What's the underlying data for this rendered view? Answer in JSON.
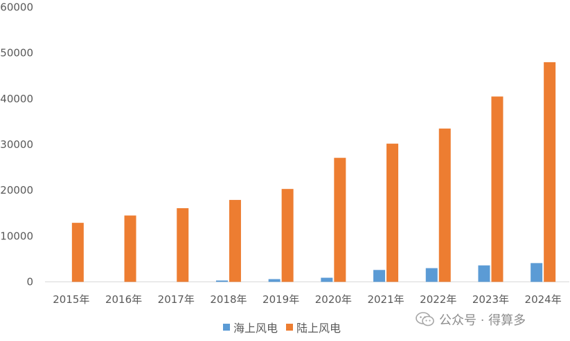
{
  "chart_data": {
    "type": "bar",
    "categories": [
      "2015年",
      "2016年",
      "2017年",
      "2018年",
      "2019年",
      "2020年",
      "2021年",
      "2022年",
      "2023年",
      "2024年"
    ],
    "series": [
      {
        "name": "海上风电",
        "color": "#5B9BD5",
        "values": [
          0,
          0,
          0,
          300,
          600,
          900,
          2600,
          3000,
          3600,
          4100
        ]
      },
      {
        "name": "陆上风电",
        "color": "#ED7D31",
        "values": [
          12900,
          14500,
          16100,
          17900,
          20300,
          27100,
          30200,
          33500,
          40500,
          48000
        ]
      }
    ],
    "ylim": [
      0,
      60000
    ],
    "yticks": [
      "0",
      "10000",
      "20000",
      "30000",
      "40000",
      "50000",
      "60000"
    ],
    "grid": false,
    "legend_position": "bottom"
  },
  "watermark": {
    "text": "公众号 · 得算多",
    "icon": "wechat-icon"
  }
}
